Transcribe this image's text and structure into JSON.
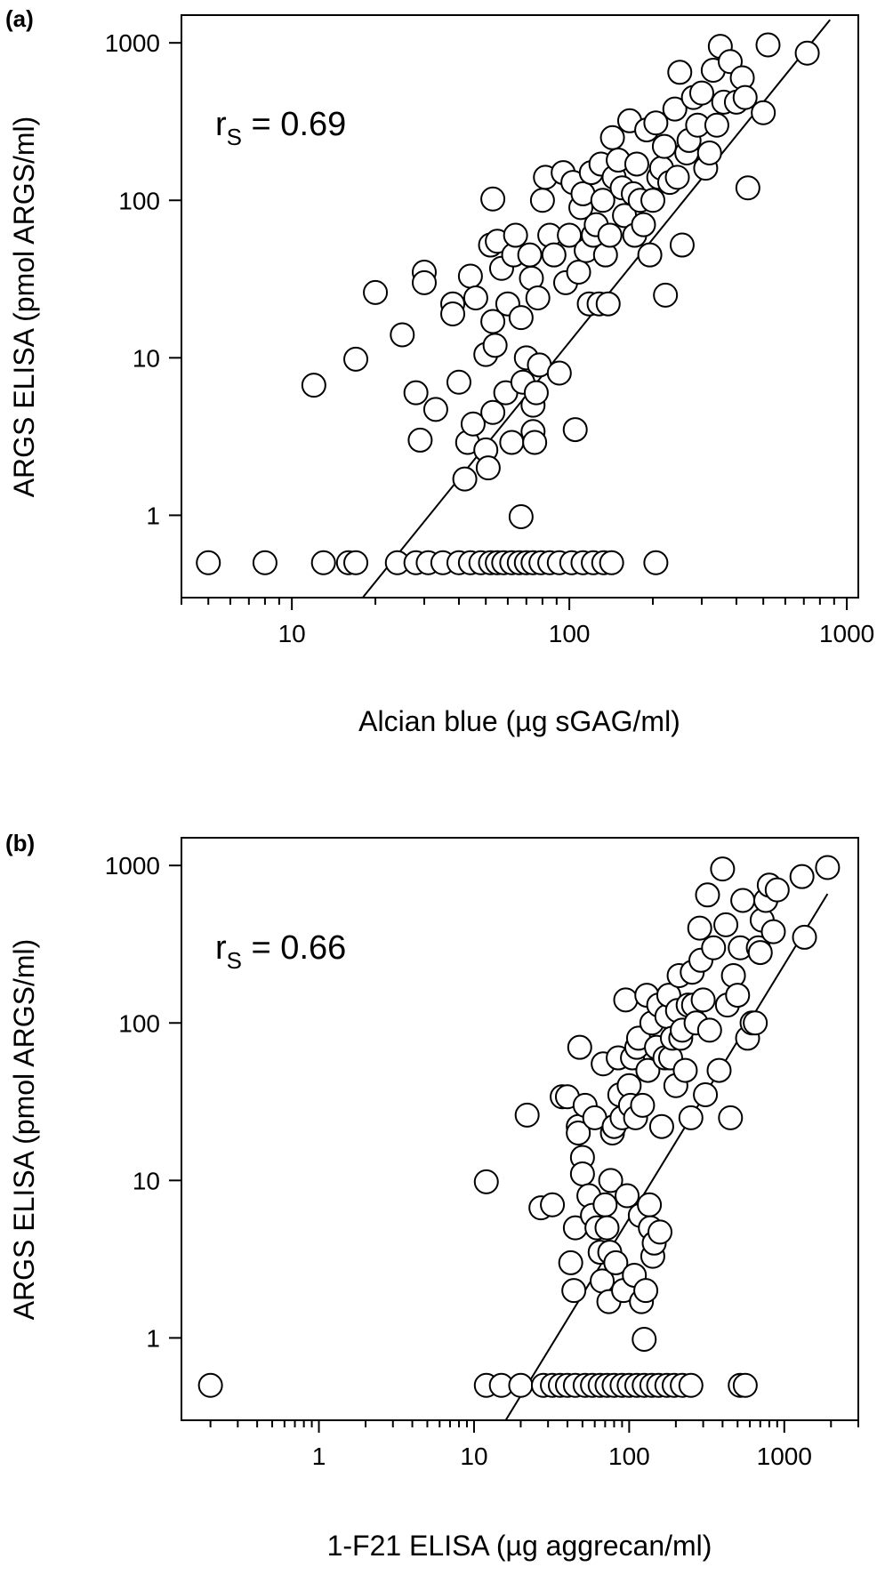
{
  "chart_data": [
    {
      "type": "scatter",
      "panel_label": "(a)",
      "xlabel": "Alcian blue (µg sGAG/ml)",
      "ylabel": "ARGS ELISA (pmol ARGS/ml)",
      "xscale": "log",
      "yscale": "log",
      "xlim": [
        4,
        1100
      ],
      "ylim": [
        0.3,
        1500
      ],
      "xticks": [
        10,
        100,
        1000
      ],
      "xtick_labels": [
        "10",
        "100",
        "1000"
      ],
      "yticks": [
        1,
        10,
        100,
        1000
      ],
      "ytick_labels": [
        "1",
        "10",
        "100",
        "1000"
      ],
      "annotation": {
        "main": "r",
        "sub": "S",
        "rest": " = 0.69"
      },
      "fit_line": [
        [
          18,
          0.3
        ],
        [
          870,
          1400
        ]
      ],
      "series": [
        {
          "points": [
            [
              5,
              0.5
            ],
            [
              8,
              0.5
            ],
            [
              13,
              0.5
            ],
            [
              16,
              0.5
            ],
            [
              17,
              0.5
            ],
            [
              24,
              0.5
            ],
            [
              28,
              0.5
            ],
            [
              31,
              0.5
            ],
            [
              35,
              0.5
            ],
            [
              40,
              0.5
            ],
            [
              44,
              0.5
            ],
            [
              48,
              0.5
            ],
            [
              52,
              0.5
            ],
            [
              55,
              0.5
            ],
            [
              58,
              0.5
            ],
            [
              62,
              0.5
            ],
            [
              66,
              0.5
            ],
            [
              70,
              0.5
            ],
            [
              74,
              0.5
            ],
            [
              79,
              0.5
            ],
            [
              85,
              0.5
            ],
            [
              92,
              0.5
            ],
            [
              102,
              0.5
            ],
            [
              112,
              0.5
            ],
            [
              122,
              0.5
            ],
            [
              133,
              0.5
            ],
            [
              142,
              0.5
            ],
            [
              205,
              0.5
            ],
            [
              12,
              6.7
            ],
            [
              17,
              9.8
            ],
            [
              20,
              26
            ],
            [
              25,
              14
            ],
            [
              28,
              6
            ],
            [
              29,
              3
            ],
            [
              30,
              35
            ],
            [
              30,
              30
            ],
            [
              33,
              4.7
            ],
            [
              38,
              22
            ],
            [
              38,
              19
            ],
            [
              40,
              7
            ],
            [
              42,
              1.7
            ],
            [
              43,
              2.9
            ],
            [
              44,
              33
            ],
            [
              45,
              3.8
            ],
            [
              46,
              24
            ],
            [
              50,
              2.6
            ],
            [
              50,
              10.5
            ],
            [
              51,
              2
            ],
            [
              52,
              52
            ],
            [
              53,
              17
            ],
            [
              53,
              4.5
            ],
            [
              53,
              102
            ],
            [
              54,
              12
            ],
            [
              55,
              55
            ],
            [
              57,
              37
            ],
            [
              59,
              6
            ],
            [
              60,
              22
            ],
            [
              62,
              2.9
            ],
            [
              63,
              45
            ],
            [
              64,
              60
            ],
            [
              67,
              0.98
            ],
            [
              67,
              18
            ],
            [
              68,
              7
            ],
            [
              70,
              10
            ],
            [
              72,
              45
            ],
            [
              73,
              32
            ],
            [
              74,
              5
            ],
            [
              74,
              3.4
            ],
            [
              75,
              2.9
            ],
            [
              76,
              6
            ],
            [
              77,
              24
            ],
            [
              78,
              9
            ],
            [
              80,
              100
            ],
            [
              82,
              140
            ],
            [
              85,
              60
            ],
            [
              88,
              45
            ],
            [
              92,
              8
            ],
            [
              95,
              150
            ],
            [
              97,
              30
            ],
            [
              100,
              60
            ],
            [
              103,
              130
            ],
            [
              105,
              3.5
            ],
            [
              108,
              35
            ],
            [
              110,
              90
            ],
            [
              112,
              110
            ],
            [
              115,
              48
            ],
            [
              118,
              22
            ],
            [
              120,
              150
            ],
            [
              122,
              60
            ],
            [
              125,
              70
            ],
            [
              128,
              22
            ],
            [
              130,
              170
            ],
            [
              132,
              100
            ],
            [
              135,
              45
            ],
            [
              138,
              22
            ],
            [
              140,
              60
            ],
            [
              143,
              250
            ],
            [
              145,
              140
            ],
            [
              150,
              180
            ],
            [
              155,
              120
            ],
            [
              158,
              80
            ],
            [
              165,
              320
            ],
            [
              170,
              110
            ],
            [
              172,
              60
            ],
            [
              175,
              170
            ],
            [
              180,
              100
            ],
            [
              185,
              70
            ],
            [
              190,
              280
            ],
            [
              195,
              45
            ],
            [
              200,
              100
            ],
            [
              205,
              310
            ],
            [
              210,
              140
            ],
            [
              215,
              160
            ],
            [
              220,
              220
            ],
            [
              222,
              25
            ],
            [
              230,
              130
            ],
            [
              240,
              380
            ],
            [
              245,
              140
            ],
            [
              250,
              650
            ],
            [
              255,
              52
            ],
            [
              265,
              200
            ],
            [
              270,
              240
            ],
            [
              280,
              450
            ],
            [
              290,
              300
            ],
            [
              300,
              480
            ],
            [
              310,
              160
            ],
            [
              320,
              200
            ],
            [
              330,
              670
            ],
            [
              340,
              300
            ],
            [
              350,
              950
            ],
            [
              360,
              420
            ],
            [
              380,
              760
            ],
            [
              400,
              420
            ],
            [
              420,
              600
            ],
            [
              430,
              450
            ],
            [
              440,
              120
            ],
            [
              500,
              360
            ],
            [
              520,
              970
            ],
            [
              720,
              860
            ]
          ]
        }
      ]
    },
    {
      "type": "scatter",
      "panel_label": "(b)",
      "xlabel": "1-F21 ELISA (µg aggrecan/ml)",
      "ylabel": "ARGS ELISA (pmol ARGS/ml)",
      "xscale": "log",
      "yscale": "log",
      "xlim": [
        0.13,
        3000
      ],
      "ylim": [
        0.3,
        1500
      ],
      "xticks": [
        1,
        10,
        100,
        1000
      ],
      "xtick_labels": [
        "1",
        "10",
        "100",
        "1000"
      ],
      "yticks": [
        1,
        10,
        100,
        1000
      ],
      "ytick_labels": [
        "1",
        "10",
        "100",
        "1000"
      ],
      "annotation": {
        "main": "r",
        "sub": "S",
        "rest": " = 0.66"
      },
      "fit_line": [
        [
          16,
          0.3
        ],
        [
          1900,
          660
        ]
      ],
      "series": [
        {
          "points": [
            [
              0.2,
              0.5
            ],
            [
              12,
              0.5
            ],
            [
              15,
              0.5
            ],
            [
              20,
              0.5
            ],
            [
              28,
              0.5
            ],
            [
              32,
              0.5
            ],
            [
              36,
              0.5
            ],
            [
              40,
              0.5
            ],
            [
              45,
              0.5
            ],
            [
              52,
              0.5
            ],
            [
              58,
              0.5
            ],
            [
              65,
              0.5
            ],
            [
              72,
              0.5
            ],
            [
              80,
              0.5
            ],
            [
              90,
              0.5
            ],
            [
              100,
              0.5
            ],
            [
              112,
              0.5
            ],
            [
              125,
              0.5
            ],
            [
              140,
              0.5
            ],
            [
              155,
              0.5
            ],
            [
              175,
              0.5
            ],
            [
              195,
              0.5
            ],
            [
              220,
              0.5
            ],
            [
              250,
              0.5
            ],
            [
              520,
              0.5
            ],
            [
              560,
              0.5
            ],
            [
              12,
              9.8
            ],
            [
              22,
              26
            ],
            [
              27,
              6.7
            ],
            [
              32,
              7
            ],
            [
              37,
              34
            ],
            [
              40,
              34
            ],
            [
              42,
              3
            ],
            [
              44,
              2
            ],
            [
              45,
              5
            ],
            [
              47,
              22
            ],
            [
              47,
              20
            ],
            [
              48,
              70
            ],
            [
              50,
              14
            ],
            [
              50,
              11
            ],
            [
              52,
              30
            ],
            [
              55,
              8
            ],
            [
              58,
              6
            ],
            [
              60,
              25
            ],
            [
              62,
              5
            ],
            [
              65,
              3.5
            ],
            [
              67,
              2.3
            ],
            [
              68,
              55
            ],
            [
              70,
              7
            ],
            [
              72,
              5
            ],
            [
              74,
              1.7
            ],
            [
              75,
              3.5
            ],
            [
              76,
              10
            ],
            [
              78,
              20
            ],
            [
              80,
              22
            ],
            [
              82,
              3
            ],
            [
              85,
              60
            ],
            [
              87,
              35
            ],
            [
              90,
              25
            ],
            [
              92,
              2
            ],
            [
              95,
              140
            ],
            [
              97,
              8
            ],
            [
              100,
              40
            ],
            [
              102,
              30
            ],
            [
              105,
              60
            ],
            [
              108,
              2.5
            ],
            [
              110,
              25
            ],
            [
              112,
              70
            ],
            [
              115,
              80
            ],
            [
              118,
              6
            ],
            [
              120,
              1.7
            ],
            [
              122,
              30
            ],
            [
              125,
              0.98
            ],
            [
              128,
              2
            ],
            [
              130,
              150
            ],
            [
              132,
              50
            ],
            [
              135,
              7
            ],
            [
              137,
              5
            ],
            [
              140,
              100
            ],
            [
              142,
              3.3
            ],
            [
              145,
              4
            ],
            [
              150,
              70
            ],
            [
              155,
              130
            ],
            [
              158,
              4.7
            ],
            [
              162,
              22
            ],
            [
              170,
              60
            ],
            [
              175,
              110
            ],
            [
              180,
              150
            ],
            [
              185,
              60
            ],
            [
              190,
              80
            ],
            [
              200,
              40
            ],
            [
              205,
              120
            ],
            [
              210,
              200
            ],
            [
              215,
              80
            ],
            [
              220,
              90
            ],
            [
              230,
              50
            ],
            [
              240,
              130
            ],
            [
              250,
              25
            ],
            [
              255,
              210
            ],
            [
              260,
              130
            ],
            [
              270,
              100
            ],
            [
              285,
              400
            ],
            [
              290,
              250
            ],
            [
              300,
              140
            ],
            [
              310,
              35
            ],
            [
              320,
              650
            ],
            [
              330,
              90
            ],
            [
              350,
              300
            ],
            [
              380,
              50
            ],
            [
              400,
              950
            ],
            [
              420,
              420
            ],
            [
              430,
              130
            ],
            [
              450,
              25
            ],
            [
              470,
              200
            ],
            [
              500,
              150
            ],
            [
              520,
              300
            ],
            [
              540,
              600
            ],
            [
              580,
              80
            ],
            [
              620,
              100
            ],
            [
              650,
              100
            ],
            [
              680,
              300
            ],
            [
              700,
              280
            ],
            [
              720,
              450
            ],
            [
              760,
              600
            ],
            [
              800,
              750
            ],
            [
              850,
              380
            ],
            [
              900,
              700
            ],
            [
              1300,
              850
            ],
            [
              1350,
              350
            ],
            [
              1900,
              970
            ]
          ]
        }
      ]
    }
  ]
}
